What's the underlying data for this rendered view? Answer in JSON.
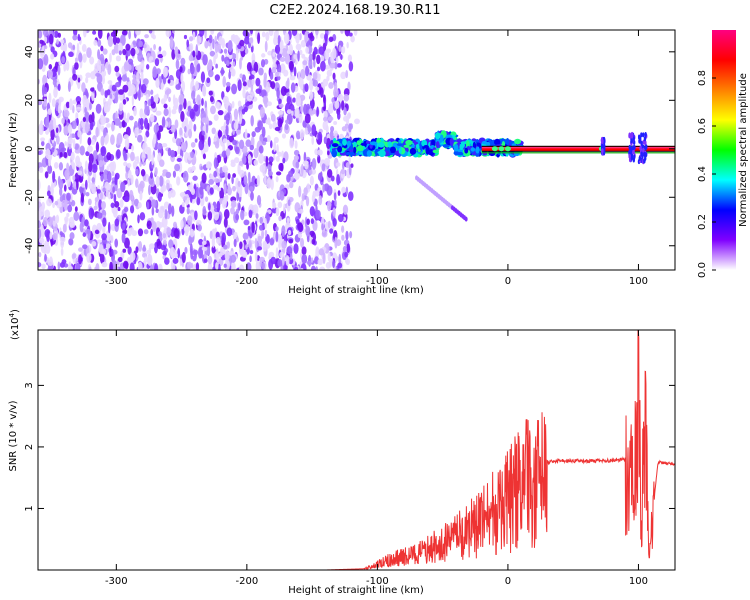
{
  "title": "C2E2.2024.168.19.30.R11",
  "chart_data": [
    {
      "type": "heatmap",
      "xlabel": "Height of straight line (km)",
      "ylabel": "Frequency (Hz)",
      "xlim": [
        -360,
        128
      ],
      "ylim": [
        -50,
        49
      ],
      "x_ticks": [
        "-300",
        "-200",
        "-100",
        "0",
        "100"
      ],
      "x_tick_values": [
        -300,
        -200,
        -100,
        0,
        100
      ],
      "y_ticks": [
        "-40",
        "-20",
        "0",
        "20",
        "40"
      ],
      "y_tick_values": [
        -40,
        -20,
        0,
        20,
        40
      ],
      "colorbar": {
        "label": "Normalized spectral amplitude",
        "range": [
          0,
          1
        ],
        "ticks": [
          "0.0",
          "0.2",
          "0.4",
          "0.6",
          "0.8"
        ],
        "tick_values": [
          0.0,
          0.2,
          0.4,
          0.6,
          0.8
        ],
        "colors": [
          "#ffffff",
          "#8000ff",
          "#0000ff",
          "#00ffff",
          "#00ff00",
          "#ffff00",
          "#ff8000",
          "#ff0000",
          "#ff0080"
        ]
      },
      "regions": [
        {
          "desc": "noise",
          "x": [
            -360,
            -120
          ],
          "y": [
            -50,
            49
          ],
          "amplitude": 0.1
        },
        {
          "desc": "signal-band",
          "x": [
            -135,
            10
          ],
          "y": [
            -6,
            12
          ],
          "amplitude": 0.35
        },
        {
          "desc": "tone",
          "x": [
            -20,
            128
          ],
          "y": [
            0,
            0
          ],
          "amplitude": 0.9
        },
        {
          "desc": "trail",
          "x": [
            -70,
            -32
          ],
          "y": [
            -29,
            -12
          ],
          "amplitude": 0.2
        },
        {
          "desc": "burst",
          "x": [
            72,
            74
          ],
          "y": [
            -2,
            4
          ],
          "amplitude": 0.3
        },
        {
          "desc": "burst",
          "x": [
            93,
            97
          ],
          "y": [
            -5,
            6
          ],
          "amplitude": 0.3
        },
        {
          "desc": "burst",
          "x": [
            100,
            106
          ],
          "y": [
            -6,
            6
          ],
          "amplitude": 0.3
        }
      ],
      "line_color": "#00a000",
      "highlight_color": "#ff0000"
    },
    {
      "type": "line",
      "xlabel": "Height of straight line (km)",
      "ylabel": "SNR (10 * v/v)",
      "multiplier": "(x10",
      "multiplier_exp": "4",
      "multiplier_close": ")",
      "xlim": [
        -360,
        128
      ],
      "ylim": [
        0,
        3.9
      ],
      "x_ticks": [
        "-300",
        "-200",
        "-100",
        "0",
        "100"
      ],
      "x_tick_values": [
        -300,
        -200,
        -100,
        0,
        100
      ],
      "y_ticks": [
        "1",
        "2",
        "3"
      ],
      "y_tick_values": [
        1,
        2,
        3
      ],
      "color": "#ee3333",
      "series": [
        {
          "x": [
            -360,
            -140,
            -110,
            -100,
            -90,
            -80,
            -70,
            -60,
            -50,
            -40,
            -30,
            -20,
            -10,
            0,
            10,
            20,
            30,
            40,
            60,
            80,
            90,
            95,
            98,
            100,
            102,
            105,
            108,
            115,
            128
          ],
          "y": [
            0.0,
            0.0,
            0.02,
            0.1,
            0.2,
            0.25,
            0.3,
            0.4,
            0.5,
            0.6,
            0.75,
            0.9,
            1.1,
            1.3,
            1.6,
            1.7,
            1.75,
            1.78,
            1.77,
            1.78,
            1.8,
            1.6,
            2.0,
            3.9,
            0.5,
            2.9,
            0.3,
            1.75,
            1.72
          ]
        }
      ]
    }
  ]
}
